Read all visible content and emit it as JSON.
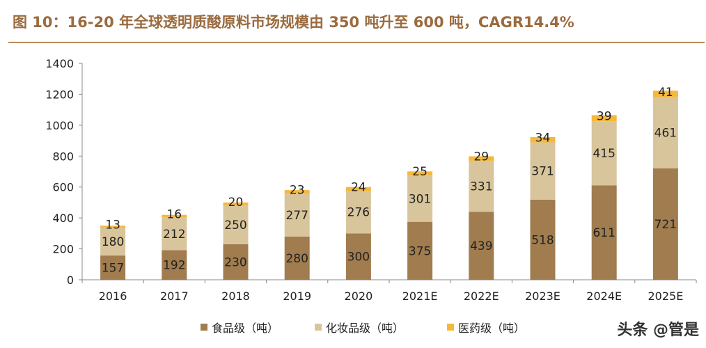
{
  "title": "图 10：16-20 年全球透明质酸原料市场规模由 350 吨升至 600 吨，CAGR14.4%",
  "watermark": "头条 @管是",
  "colors": {
    "food": "#a07c4e",
    "cosmetic": "#d8c59b",
    "medical": "#f5b83c",
    "title": "#9b6b3f"
  },
  "chart_data": {
    "type": "bar",
    "stacked": true,
    "categories": [
      "2016",
      "2017",
      "2018",
      "2019",
      "2020",
      "2021E",
      "2022E",
      "2023E",
      "2024E",
      "2025E"
    ],
    "series": [
      {
        "name": "食品级（吨）",
        "values": [
          157,
          192,
          230,
          280,
          300,
          375,
          439,
          518,
          611,
          721
        ]
      },
      {
        "name": "化妆品级（吨）",
        "values": [
          180,
          212,
          250,
          277,
          276,
          301,
          331,
          371,
          415,
          461
        ]
      },
      {
        "name": "医药级（吨）",
        "values": [
          13,
          16,
          20,
          23,
          24,
          25,
          29,
          34,
          39,
          41
        ]
      }
    ],
    "ylim": [
      0,
      1400
    ],
    "yticks": [
      0,
      200,
      400,
      600,
      800,
      1000,
      1200,
      1400
    ],
    "legend_position": "bottom"
  }
}
